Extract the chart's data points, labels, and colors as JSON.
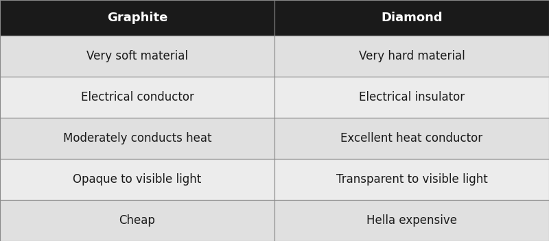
{
  "headers": [
    "Graphite",
    "Diamond"
  ],
  "rows": [
    [
      "Very soft material",
      "Very hard material"
    ],
    [
      "Electrical conductor",
      "Electrical insulator"
    ],
    [
      "Moderately conducts heat",
      "Excellent heat conductor"
    ],
    [
      "Opaque to visible light",
      "Transparent to visible light"
    ],
    [
      "Cheap",
      "Hella expensive"
    ]
  ],
  "header_bg": "#1a1a1a",
  "header_text_color": "#ffffff",
  "row_bg_odd": "#e0e0e0",
  "row_bg_even": "#ececec",
  "cell_text_color": "#1a1a1a",
  "border_color": "#888888",
  "header_fontsize": 13,
  "cell_fontsize": 12
}
